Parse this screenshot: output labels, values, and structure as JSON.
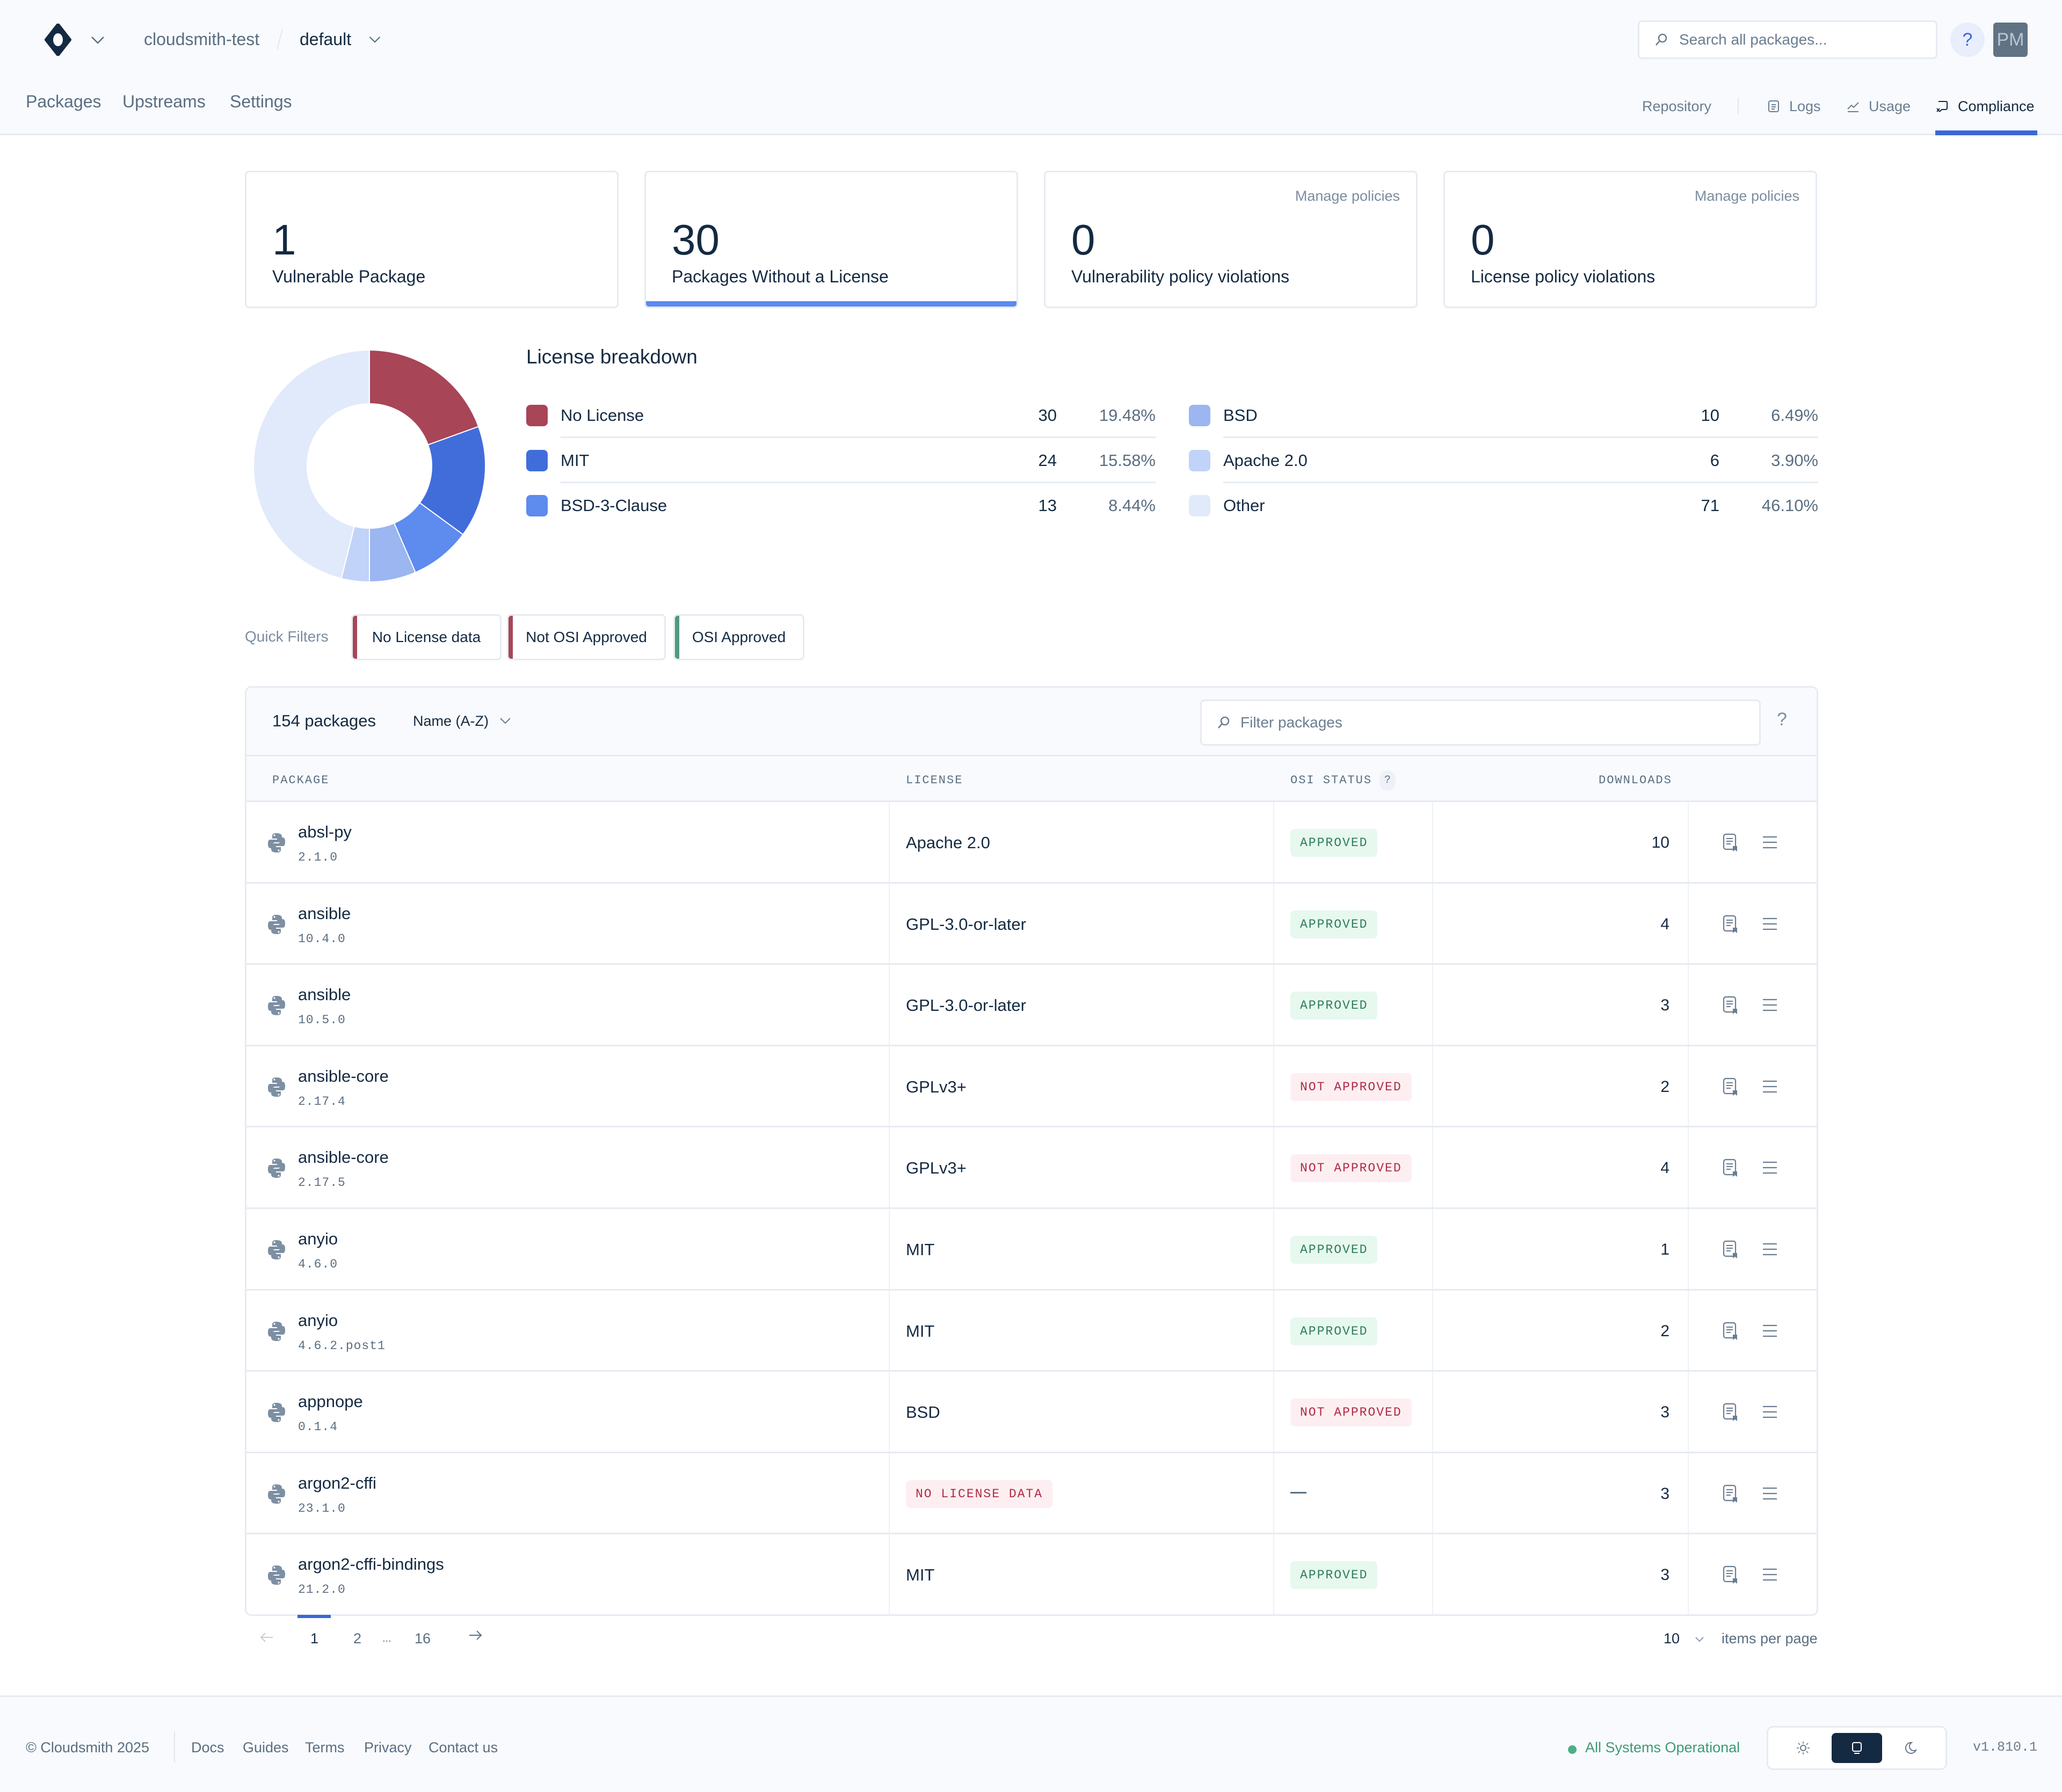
{
  "header": {
    "org": "cloudsmith-test",
    "repo": "default",
    "search_placeholder": "Search all packages...",
    "help_label": "?",
    "avatar_initials": "PM",
    "left_nav": [
      "Packages",
      "Upstreams",
      "Settings"
    ],
    "right_nav": {
      "repository": "Repository",
      "logs": "Logs",
      "usage": "Usage",
      "compliance": "Compliance"
    }
  },
  "stats": [
    {
      "value": "1",
      "label": "Vulnerable Package",
      "manage": null
    },
    {
      "value": "30",
      "label": "Packages Without a License",
      "manage": null
    },
    {
      "value": "0",
      "label": "Vulnerability policy violations",
      "manage": "Manage policies"
    },
    {
      "value": "0",
      "label": "License policy violations",
      "manage": "Manage policies"
    }
  ],
  "breakdown": {
    "title": "License breakdown",
    "items": [
      {
        "name": "No License",
        "count": "30",
        "pct": "19.48%",
        "color": "#a84557"
      },
      {
        "name": "MIT",
        "count": "24",
        "pct": "15.58%",
        "color": "#416ddb"
      },
      {
        "name": "BSD-3-Clause",
        "count": "13",
        "pct": "8.44%",
        "color": "#5d8bee"
      },
      {
        "name": "BSD",
        "count": "10",
        "pct": "6.49%",
        "color": "#9bb6f0"
      },
      {
        "name": "Apache 2.0",
        "count": "6",
        "pct": "3.90%",
        "color": "#c1d3f8"
      },
      {
        "name": "Other",
        "count": "71",
        "pct": "46.10%",
        "color": "#e1eafa"
      }
    ]
  },
  "chart_data": {
    "type": "pie",
    "title": "License breakdown",
    "categories": [
      "No License",
      "MIT",
      "BSD-3-Clause",
      "BSD",
      "Apache 2.0",
      "Other"
    ],
    "values": [
      30,
      24,
      13,
      10,
      6,
      71
    ],
    "percentages": [
      19.48,
      15.58,
      8.44,
      6.49,
      3.9,
      46.1
    ],
    "colors": [
      "#a84557",
      "#416ddb",
      "#5d8bee",
      "#9bb6f0",
      "#c1d3f8",
      "#e1eafa"
    ],
    "donut": true,
    "legend_position": "right"
  },
  "quick_filters": {
    "label": "Quick Filters",
    "items": [
      {
        "label": "No License data",
        "color": "#a84557"
      },
      {
        "label": "Not OSI Approved",
        "color": "#a84557"
      },
      {
        "label": "OSI Approved",
        "color": "#4f9a7e"
      }
    ]
  },
  "table": {
    "count_label": "154 packages",
    "sort_label": "Name (A-Z)",
    "filter_placeholder": "Filter packages",
    "help_label": "?",
    "columns": {
      "package": "PACKAGE",
      "license": "LICENSE",
      "osi": "OSI STATUS",
      "osi_help": "?",
      "downloads": "DOWNLOADS"
    },
    "rows": [
      {
        "name": "absl-py",
        "version": "2.1.0",
        "license": "Apache 2.0",
        "license_badge": false,
        "osi": "APPROVED",
        "osi_state": "ok",
        "downloads": "10"
      },
      {
        "name": "ansible",
        "version": "10.4.0",
        "license": "GPL-3.0-or-later",
        "license_badge": false,
        "osi": "APPROVED",
        "osi_state": "ok",
        "downloads": "4"
      },
      {
        "name": "ansible",
        "version": "10.5.0",
        "license": "GPL-3.0-or-later",
        "license_badge": false,
        "osi": "APPROVED",
        "osi_state": "ok",
        "downloads": "3"
      },
      {
        "name": "ansible-core",
        "version": "2.17.4",
        "license": "GPLv3+",
        "license_badge": false,
        "osi": "NOT APPROVED",
        "osi_state": "bad",
        "downloads": "2"
      },
      {
        "name": "ansible-core",
        "version": "2.17.5",
        "license": "GPLv3+",
        "license_badge": false,
        "osi": "NOT APPROVED",
        "osi_state": "bad",
        "downloads": "4"
      },
      {
        "name": "anyio",
        "version": "4.6.0",
        "license": "MIT",
        "license_badge": false,
        "osi": "APPROVED",
        "osi_state": "ok",
        "downloads": "1"
      },
      {
        "name": "anyio",
        "version": "4.6.2.post1",
        "license": "MIT",
        "license_badge": false,
        "osi": "APPROVED",
        "osi_state": "ok",
        "downloads": "2"
      },
      {
        "name": "appnope",
        "version": "0.1.4",
        "license": "BSD",
        "license_badge": false,
        "osi": "NOT APPROVED",
        "osi_state": "bad",
        "downloads": "3"
      },
      {
        "name": "argon2-cffi",
        "version": "23.1.0",
        "license": "NO LICENSE DATA",
        "license_badge": true,
        "osi": "—",
        "osi_state": "none",
        "downloads": "3"
      },
      {
        "name": "argon2-cffi-bindings",
        "version": "21.2.0",
        "license": "MIT",
        "license_badge": false,
        "osi": "APPROVED",
        "osi_state": "ok",
        "downloads": "3"
      }
    ]
  },
  "pagination": {
    "pages": [
      "1",
      "2",
      "...",
      "16"
    ],
    "current": "1",
    "per_page": "10",
    "per_page_label": "items per page"
  },
  "footer": {
    "copyright": "© Cloudsmith 2025",
    "links": [
      "Docs",
      "Guides",
      "Terms",
      "Privacy",
      "Contact us"
    ],
    "status": "All Systems Operational",
    "version": "v1.810.1",
    "theme_selected": "system"
  }
}
